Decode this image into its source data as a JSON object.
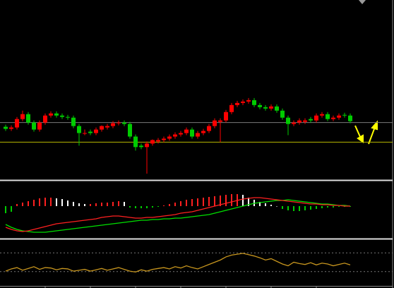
{
  "chart_data": [
    {
      "type": "candlestick",
      "ylim": [
        0,
        255
      ],
      "up_color": "#ff0000",
      "down_color": "#00cc00",
      "levels": [
        {
          "value": 80,
          "color": "#7a7a7a"
        },
        {
          "value": 52,
          "color": "#b8b800"
        }
      ],
      "open": [
        74,
        71,
        73,
        85,
        92,
        80,
        70,
        80,
        90,
        93,
        90,
        88,
        87,
        75,
        65,
        67,
        65,
        70,
        73,
        75,
        79,
        80,
        78,
        60,
        47,
        45,
        50,
        53,
        55,
        57,
        60,
        63,
        65,
        70,
        60,
        65,
        68,
        75,
        81,
        83,
        95,
        105,
        108,
        110,
        112,
        105,
        102,
        100,
        103,
        97,
        87,
        78,
        80,
        81,
        85,
        83,
        90,
        92,
        85,
        87,
        91,
        90
      ],
      "high": [
        77,
        76,
        88,
        97,
        95,
        83,
        83,
        93,
        96,
        96,
        93,
        91,
        90,
        78,
        70,
        70,
        73,
        76,
        78,
        82,
        83,
        83,
        81,
        63,
        50,
        53,
        56,
        58,
        60,
        63,
        66,
        68,
        73,
        73,
        68,
        71,
        78,
        86,
        86,
        98,
        108,
        111,
        113,
        115,
        115,
        108,
        105,
        106,
        106,
        100,
        90,
        83,
        86,
        86,
        88,
        93,
        95,
        95,
        90,
        93,
        94,
        93
      ],
      "low": [
        68,
        68,
        70,
        82,
        77,
        67,
        67,
        77,
        87,
        87,
        85,
        84,
        72,
        47,
        62,
        62,
        62,
        67,
        70,
        72,
        76,
        75,
        57,
        40,
        42,
        7,
        47,
        50,
        52,
        54,
        57,
        60,
        62,
        57,
        57,
        62,
        65,
        72,
        52,
        80,
        92,
        102,
        105,
        107,
        102,
        99,
        97,
        97,
        94,
        84,
        62,
        75,
        77,
        78,
        80,
        80,
        87,
        82,
        82,
        84,
        87,
        79
      ],
      "close": [
        71,
        73,
        85,
        92,
        80,
        70,
        80,
        90,
        93,
        90,
        88,
        87,
        75,
        65,
        65,
        65,
        70,
        75,
        75,
        79,
        80,
        78,
        60,
        45,
        45,
        50,
        55,
        55,
        57,
        60,
        63,
        65,
        70,
        60,
        65,
        68,
        75,
        83,
        83,
        95,
        105,
        108,
        110,
        112,
        105,
        102,
        100,
        103,
        97,
        87,
        78,
        80,
        83,
        83,
        83,
        90,
        92,
        85,
        87,
        90,
        90,
        82
      ]
    },
    {
      "type": "macd",
      "ylim": [
        -46,
        36
      ],
      "rising_color": "#ff2020",
      "falling_color": "#ffffff",
      "negative_color": "#00cc00",
      "histogram": [
        -10,
        -8,
        3,
        5,
        7,
        9,
        11,
        12,
        12,
        11,
        10,
        8,
        6,
        4,
        3,
        3,
        4,
        5,
        5,
        6,
        7,
        6,
        -2,
        -3,
        -3,
        -3,
        -2,
        -1,
        1,
        3,
        5,
        7,
        9,
        10,
        11,
        12,
        13,
        14,
        15,
        16,
        17,
        17,
        16,
        12,
        9,
        6,
        4,
        2,
        0,
        -4,
        -6,
        -7,
        -7,
        -6,
        -5,
        -4,
        -3,
        -2,
        -2,
        -1,
        -1,
        -1
      ],
      "series": [
        {
          "color": "#00e000",
          "values": [
            -26,
            -30,
            -33,
            -35,
            -36,
            -37,
            -37,
            -37,
            -36,
            -35,
            -34,
            -33,
            -32,
            -31,
            -30,
            -29,
            -28,
            -27,
            -26,
            -25,
            -24,
            -23,
            -22,
            -21,
            -20,
            -20,
            -19,
            -19,
            -18,
            -18,
            -17,
            -17,
            -16,
            -15,
            -14,
            -13,
            -12,
            -10,
            -8,
            -6,
            -4,
            -2,
            0,
            2,
            4,
            5,
            6,
            7,
            8,
            8,
            9,
            8,
            7,
            6,
            5,
            4,
            3,
            3,
            2,
            1,
            1,
            0
          ]
        },
        {
          "color": "#ff2020",
          "values": [
            -30,
            -33,
            -35,
            -36,
            -35,
            -33,
            -31,
            -29,
            -27,
            -25,
            -24,
            -23,
            -22,
            -21,
            -20,
            -19,
            -18,
            -16,
            -15,
            -14,
            -14,
            -15,
            -16,
            -17,
            -17,
            -16,
            -16,
            -15,
            -14,
            -13,
            -12,
            -10,
            -9,
            -8,
            -6,
            -4,
            -2,
            0,
            2,
            4,
            6,
            8,
            10,
            11,
            12,
            12,
            11,
            10,
            9,
            8,
            7,
            6,
            5,
            4,
            3,
            3,
            2,
            2,
            1,
            1,
            0,
            0
          ]
        }
      ]
    },
    {
      "type": "line",
      "ylim": [
        0,
        100
      ],
      "color": "#c8961e",
      "levels": [
        {
          "value": 71,
          "color": "#777777"
        },
        {
          "value": 29,
          "color": "#777777"
        }
      ],
      "xticks": [
        7,
        15,
        23,
        31,
        39,
        47,
        55
      ],
      "values": [
        30,
        35,
        38,
        32,
        36,
        40,
        34,
        38,
        37,
        33,
        36,
        35,
        30,
        32,
        34,
        30,
        33,
        36,
        32,
        35,
        38,
        34,
        30,
        28,
        33,
        30,
        34,
        36,
        38,
        35,
        40,
        37,
        42,
        38,
        35,
        40,
        45,
        50,
        55,
        62,
        66,
        68,
        70,
        67,
        64,
        60,
        55,
        58,
        52,
        46,
        42,
        50,
        47,
        45,
        49,
        44,
        48,
        46,
        42,
        45,
        48,
        44
      ]
    }
  ]
}
